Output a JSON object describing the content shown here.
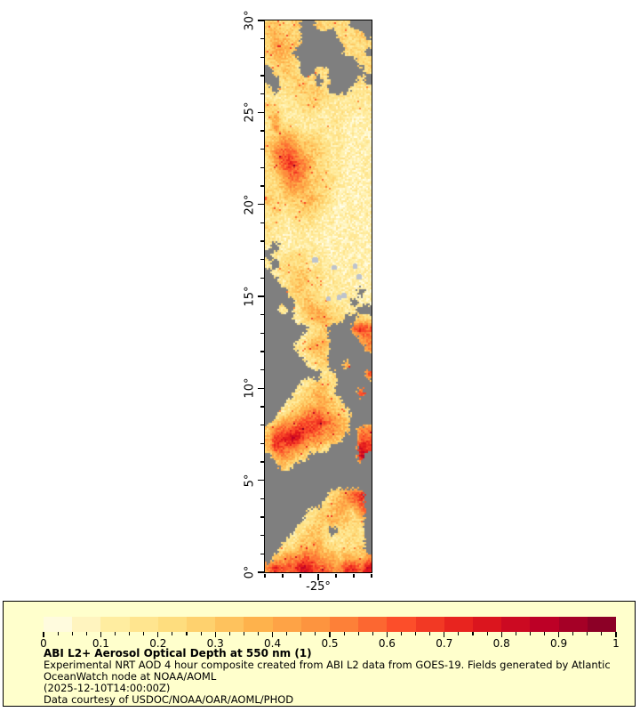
{
  "figure": {
    "background": "#ffffff"
  },
  "map": {
    "type": "geo-raster",
    "variable": "Aerosol Optical Depth at 550 nm",
    "lat_range": [
      0,
      30
    ],
    "lon_range": [
      -28,
      -22
    ],
    "y_axis": {
      "major_ticks": [
        {
          "value": 0,
          "label": "0°"
        },
        {
          "value": 5,
          "label": "5°"
        },
        {
          "value": 10,
          "label": "10°"
        },
        {
          "value": 15,
          "label": "15°"
        },
        {
          "value": 20,
          "label": "20°"
        },
        {
          "value": 25,
          "label": "25°"
        },
        {
          "value": 30,
          "label": "30°"
        }
      ],
      "minor_tick_step": 1
    },
    "x_axis": {
      "major_ticks": [
        {
          "value": -25,
          "label": "-25°"
        }
      ],
      "minor_tick_step": 1
    },
    "colors": {
      "missing": "#7f7f7f",
      "island": "#bdc3cd",
      "frame": "#000000"
    },
    "islands": [
      {
        "lat": 17.0,
        "lon": -25.2,
        "w": 7,
        "h": 5
      },
      {
        "lat": 16.55,
        "lon": -24.1,
        "w": 6,
        "h": 4
      },
      {
        "lat": 16.65,
        "lon": -22.95,
        "w": 5,
        "h": 5
      },
      {
        "lat": 16.05,
        "lon": -22.7,
        "w": 6,
        "h": 5
      },
      {
        "lat": 15.05,
        "lon": -23.55,
        "w": 6,
        "h": 5
      },
      {
        "lat": 14.85,
        "lon": -24.45,
        "w": 5,
        "h": 4
      },
      {
        "lat": 14.95,
        "lon": -23.85,
        "w": 5,
        "h": 5
      }
    ],
    "aod_grid": {
      "value_map": {
        "0": 0.05,
        "1": 0.1,
        "2": 0.15,
        "3": 0.22,
        "4": 0.3,
        "5": 0.4,
        "6": 0.5,
        "7": 0.6,
        "8": 0.7,
        "9": 0.82,
        "A": 0.92
      },
      "rows": [
        "44334..43433...",
        "45443.....3334.",
        "35544......3333",
        "4554.......333.",
        "34443........33",
        ".3443..33.....3",
        "..33443.3....3.",
        "3.2334443...222",
        "222233443222222",
        "432223332222222",
        "352222222222111",
        "263322222221111",
        "345543332221111",
        "456654433221111",
        "467765443221111",
        "357876533221111",
        "346776433221111",
        "335665443321111",
        "334555433211111",
        "433444543211111",
        "342334432111111",
        "232233321111111",
        "322122221111111",
        "221122111111111",
        "2.1112211111111",
        ".22333222111111",
        "2.3333222111111",
        ".23344332211111",
        "..2344332221111",
        "...3443322221.1",
        "....34433222.11",
        "..2.245543322..",
        "....2345543..43",
        "......234...787",
        ".....2344....66",
        "....23554.....6",
        ".....2344......",
        "......233..5...",
        "........23....7",
        ".....23443.....",
        "....234543...8.",
        "...23445543....",
        "..2345665443...",
        ".35567787654...",
        "467788876654.66",
        "58899766554..77",
        "487765443....98",
        ".46543.......9.",
        "..43...........",
        "...............",
        "...............",
        ".........34678.",
        "........345567.",
        "......23445436.",
        ".....234454433.",
        "....23443.3333.",
        "...23445322333.",
        "..334555443334.",
        ".45667765545546",
        "687789877668879"
      ]
    }
  },
  "legend": {
    "background": "#ffffcc",
    "border_color": "#000000",
    "colorbar": {
      "min": 0,
      "max": 1,
      "segments": 20,
      "minor_tick_step": 0.025,
      "major_tick_labels": [
        "0",
        "0.1",
        "0.2",
        "0.3",
        "0.4",
        "0.5",
        "0.6",
        "0.7",
        "0.8",
        "0.9",
        "1"
      ],
      "colormap": "YlOrRd",
      "colormap_stops": [
        [
          0.0,
          "#ffffee"
        ],
        [
          0.125,
          "#ffeda0"
        ],
        [
          0.25,
          "#fed976"
        ],
        [
          0.375,
          "#feb24c"
        ],
        [
          0.5,
          "#fd8d3c"
        ],
        [
          0.625,
          "#fc4e2a"
        ],
        [
          0.75,
          "#e31a1c"
        ],
        [
          0.875,
          "#bd0026"
        ],
        [
          1.0,
          "#800026"
        ]
      ]
    },
    "title": "ABI L2+ Aerosol Optical Depth at 550 nm (1)",
    "description_lines": [
      "Experimental NRT AOD 4 hour composite created from ABI L2 data from GOES-19. Fields generated by Atlantic",
      "OceanWatch node at NOAA/AOML",
      "(2025-12-10T14:00:00Z)",
      "Data courtesy of USDOC/NOAA/OAR/AOML/PHOD"
    ]
  }
}
